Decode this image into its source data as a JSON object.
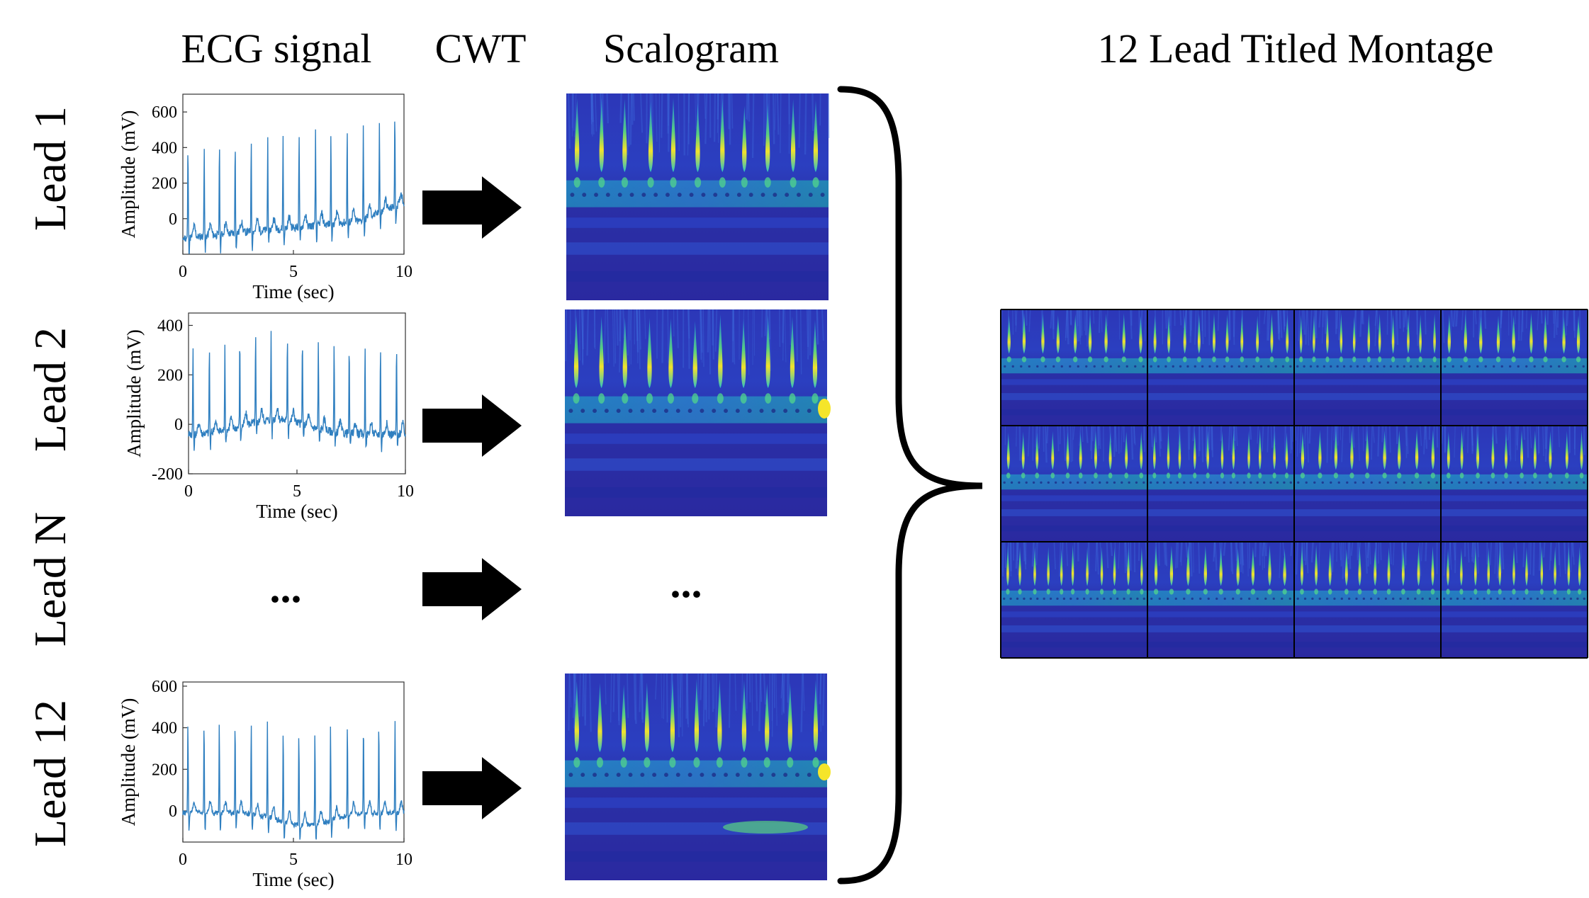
{
  "headers": {
    "ecg": "ECG signal",
    "cwt": "CWT",
    "scalogram": "Scalogram",
    "montage": "12 Lead Titled Montage"
  },
  "lead_labels": [
    "Lead 1",
    "Lead 2",
    "Lead N",
    "Lead 12"
  ],
  "ellipsis": "...",
  "plots": [
    {
      "lead": "Lead 1",
      "xlabel": "Time (sec)",
      "ylabel": "Amplitude (mV)",
      "xlim": [
        0,
        10
      ],
      "ylim": [
        -200,
        700
      ],
      "xticks": [
        "0",
        "5",
        "10"
      ],
      "yticks": [
        "0",
        "200",
        "400",
        "600"
      ],
      "baseline": -50,
      "peak": 520,
      "trend": "rising",
      "noise": 45
    },
    {
      "lead": "Lead 2",
      "xlabel": "Time (sec)",
      "ylabel": "Amplitude (mV)",
      "xlim": [
        0,
        10
      ],
      "ylim": [
        -200,
        450
      ],
      "xticks": [
        "0",
        "5",
        "10"
      ],
      "yticks": [
        "-200",
        "0",
        "200",
        "400"
      ],
      "baseline": -20,
      "peak": 360,
      "trend": "hump",
      "noise": 35
    },
    {
      "lead": "Lead 12",
      "xlabel": "Time (sec)",
      "ylabel": "Amplitude (mV)",
      "xlim": [
        0,
        10
      ],
      "ylim": [
        -150,
        620
      ],
      "xticks": [
        "0",
        "5",
        "10"
      ],
      "yticks": [
        "0",
        "200",
        "400",
        "600"
      ],
      "baseline": -20,
      "peak": 450,
      "trend": "dip",
      "noise": 25
    }
  ],
  "colors": {
    "signal": "#2f7fc0",
    "arrow": "#000000",
    "scalogram_bg": "#2a2aa8",
    "scalogram_peak": "#f5e52a"
  },
  "montage": {
    "rows": 3,
    "cols": 4
  }
}
